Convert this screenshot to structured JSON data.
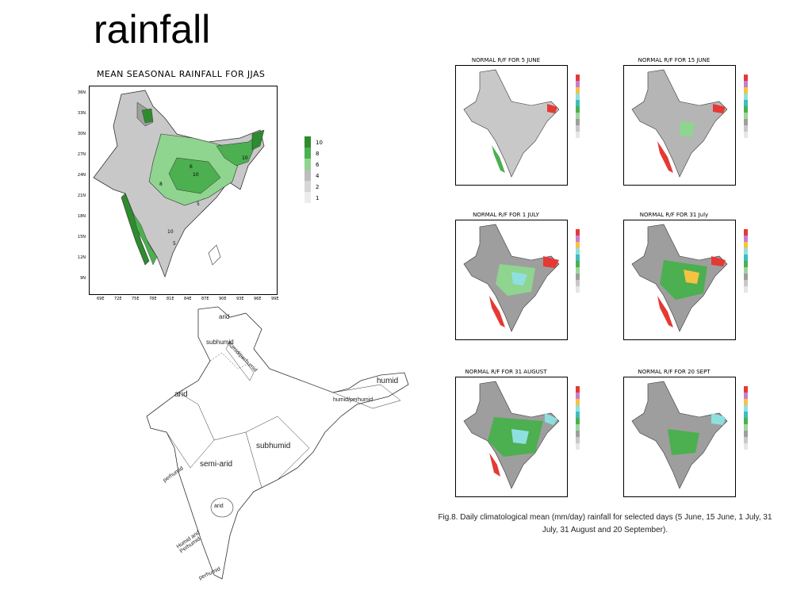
{
  "slide": {
    "title": "rainfall"
  },
  "main_map": {
    "title": "MEAN SEASONAL RAINFALL FOR JJAS",
    "lat_ticks": [
      "36N",
      "33N",
      "30N",
      "27N",
      "24N",
      "21N",
      "18N",
      "15N",
      "12N",
      "9N"
    ],
    "lon_ticks": [
      "69E",
      "72E",
      "75E",
      "78E",
      "81E",
      "84E",
      "87E",
      "90E",
      "93E",
      "96E",
      "99E"
    ],
    "legend": [
      "10",
      "8",
      "6",
      "4",
      "2",
      "1"
    ],
    "legend_colors": [
      "#2e8b2e",
      "#4caf50",
      "#8fd48f",
      "#bdbdbd",
      "#d6d6d6",
      "#ececec"
    ],
    "contour_labels": [
      "6",
      "10",
      "8",
      "10",
      "6",
      "5",
      "10",
      "5",
      "4"
    ]
  },
  "zone_map": {
    "labels": {
      "arid_north": "arid",
      "subhumid_north": "subhumid",
      "humid_perhumid_north": "humid/perhumid",
      "arid_west": "arid",
      "humid_east": "humid",
      "humid_perhumid_east": "humid/perhumid",
      "subhumid_central": "subhumid",
      "semi_arid": "semi-arid",
      "perhumid_west": "perhumid",
      "arid_south": "arid",
      "humid_perhumid_south": "Humid and Perhumid",
      "perhumid_south": "perhumid"
    }
  },
  "small_maps": [
    {
      "title": "NORMAL R/F FOR 5 JUNE"
    },
    {
      "title": "NORMAL R/F FOR 15 JUNE"
    },
    {
      "title": "NORMAL R/F FOR 1 JULY"
    },
    {
      "title": "NORMAL R/F FOR 31 July"
    },
    {
      "title": "NORMAL R/F FOR 31 AUGUST"
    },
    {
      "title": "NORMAL R/F FOR 20 SEPT"
    }
  ],
  "small_legend_colors": [
    "#e53935",
    "#c77dd1",
    "#f5c242",
    "#8ee0e0",
    "#3dbdbd",
    "#4caf50",
    "#9bd79b",
    "#9e9e9e",
    "#c8c8c8",
    "#e6e6e6"
  ],
  "caption": "Fig.8. Daily climatological mean (mm/day) rainfall for selected days (5 June, 15 June, 1 July, 31 July, 31 August and 20 September)."
}
